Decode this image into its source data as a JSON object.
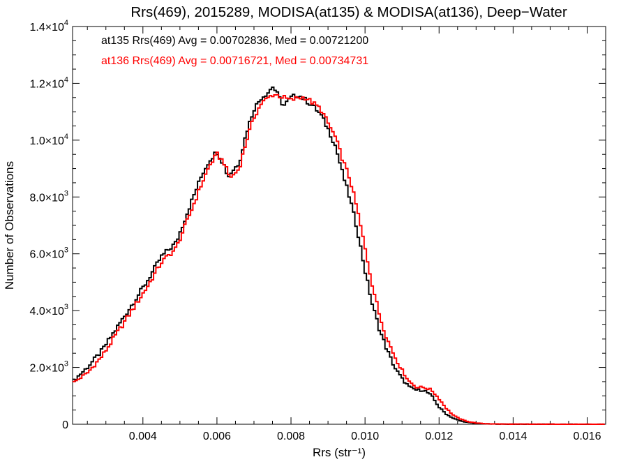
{
  "chart_data": {
    "type": "line",
    "title": "Rrs(469), 2015289, MODISA(at135) & MODISA(at136), Deep−Water",
    "xlabel": "Rrs (str⁻¹)",
    "ylabel": "Number of Observations",
    "xlim": [
      0.0021,
      0.0165
    ],
    "ylim": [
      0,
      14000
    ],
    "xticks": [
      0.004,
      0.006,
      0.008,
      0.01,
      0.012,
      0.014,
      0.016
    ],
    "xtick_labels": [
      "0.004",
      "0.006",
      "0.008",
      "0.010",
      "0.012",
      "0.014",
      "0.016"
    ],
    "yticks": [
      0,
      2000,
      4000,
      6000,
      8000,
      10000,
      12000,
      14000
    ],
    "ytick_labels": [
      {
        "mant": "0",
        "exp": ""
      },
      {
        "mant": "2.0×10",
        "exp": "3"
      },
      {
        "mant": "4.0×10",
        "exp": "3"
      },
      {
        "mant": "6.0×10",
        "exp": "3"
      },
      {
        "mant": "8.0×10",
        "exp": "3"
      },
      {
        "mant": "1.0×10",
        "exp": "4"
      },
      {
        "mant": "1.2×10",
        "exp": "4"
      },
      {
        "mant": "1.4×10",
        "exp": "4"
      }
    ],
    "grid": false,
    "legend_position": "top-left",
    "series": [
      {
        "name": "at135",
        "color": "#000000",
        "legend_text": "at135 Rrs(469) Avg = 0.00702836, Med = 0.00721200",
        "x": [
          0.0021,
          0.0025,
          0.0029,
          0.0033,
          0.0037,
          0.0041,
          0.0045,
          0.0049,
          0.0053,
          0.0056,
          0.0058,
          0.006,
          0.0062,
          0.0063,
          0.0064,
          0.0066,
          0.0068,
          0.007,
          0.0072,
          0.0074,
          0.0075,
          0.0076,
          0.0078,
          0.008,
          0.0082,
          0.0084,
          0.0086,
          0.0088,
          0.009,
          0.0092,
          0.0094,
          0.0096,
          0.0098,
          0.01,
          0.0102,
          0.0104,
          0.0106,
          0.0108,
          0.011,
          0.0112,
          0.0114,
          0.0116,
          0.0118,
          0.012,
          0.0122,
          0.0124,
          0.0126,
          0.0128,
          0.013,
          0.0132,
          0.0135,
          0.014,
          0.015,
          0.016,
          0.0165
        ],
        "y": [
          1500,
          2000,
          2600,
          3400,
          4200,
          5000,
          5900,
          6400,
          7800,
          8800,
          9300,
          9600,
          9100,
          8700,
          8900,
          9200,
          10300,
          11100,
          11500,
          11700,
          11900,
          11700,
          11200,
          11500,
          11600,
          11400,
          11200,
          10900,
          10400,
          9800,
          8800,
          7900,
          6800,
          5400,
          4200,
          3300,
          2600,
          2000,
          1600,
          1300,
          1200,
          1200,
          1000,
          600,
          350,
          200,
          110,
          60,
          30,
          15,
          8,
          3,
          1,
          0,
          0
        ]
      },
      {
        "name": "at136",
        "color": "#ff0000",
        "legend_text": "at136 Rrs(469) Avg = 0.00716721, Med = 0.00734731",
        "x": [
          0.0021,
          0.0025,
          0.0029,
          0.0033,
          0.0037,
          0.0041,
          0.0045,
          0.0049,
          0.0053,
          0.0056,
          0.0058,
          0.006,
          0.0062,
          0.0063,
          0.0064,
          0.0066,
          0.0068,
          0.007,
          0.0072,
          0.0074,
          0.0075,
          0.0076,
          0.0078,
          0.008,
          0.0082,
          0.0084,
          0.0086,
          0.0088,
          0.009,
          0.0092,
          0.0094,
          0.0096,
          0.0098,
          0.01,
          0.0102,
          0.0104,
          0.0106,
          0.0108,
          0.011,
          0.0112,
          0.0114,
          0.0116,
          0.0118,
          0.012,
          0.0122,
          0.0124,
          0.0126,
          0.0128,
          0.013,
          0.0132,
          0.0135,
          0.014,
          0.015,
          0.016,
          0.0165
        ],
        "y": [
          1450,
          1800,
          2400,
          3200,
          4000,
          4800,
          5700,
          6200,
          7500,
          8500,
          9100,
          9500,
          9200,
          8800,
          8700,
          9000,
          10000,
          10800,
          11300,
          11500,
          11600,
          11600,
          11500,
          11400,
          11500,
          11500,
          11300,
          11100,
          10600,
          10100,
          9300,
          8600,
          7500,
          6200,
          4900,
          3800,
          3000,
          2400,
          1900,
          1500,
          1300,
          1300,
          1200,
          900,
          550,
          300,
          170,
          90,
          45,
          22,
          10,
          4,
          1,
          0,
          0
        ]
      }
    ]
  }
}
